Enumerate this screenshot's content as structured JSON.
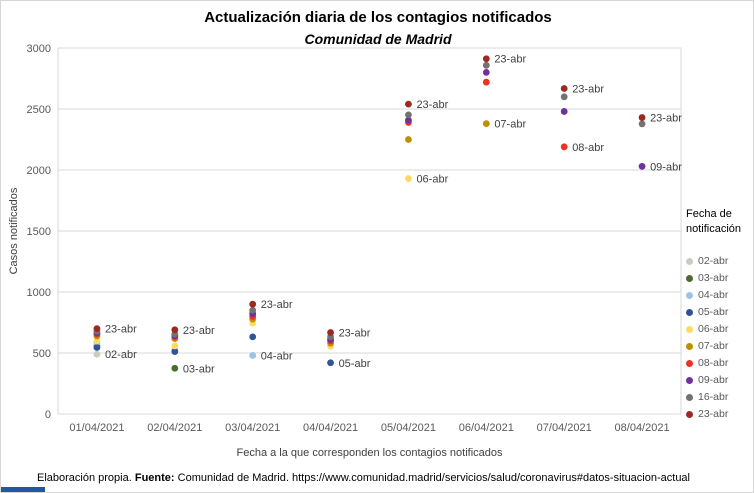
{
  "chart_data": {
    "type": "scatter",
    "title": "Actualización diaria de los contagios notificados",
    "subtitle": "Comunidad de Madrid",
    "xlabel": "Fecha a la que corresponden los contagios notificados",
    "ylabel": "Casos notificados",
    "ylim": [
      0,
      3000
    ],
    "ytick_step": 500,
    "grid": "horizontal",
    "legend_position": "right",
    "legend_title": "Fecha de notificación",
    "legend_title_line1": "Fecha de",
    "legend_title_line2": "notificación",
    "categories": [
      "01/04/2021",
      "02/04/2021",
      "03/04/2021",
      "04/04/2021",
      "05/04/2021",
      "06/04/2021",
      "07/04/2021",
      "08/04/2021"
    ],
    "series": [
      {
        "name": "02-abr",
        "color": "#c5cfc0",
        "values": [
          490,
          null,
          null,
          null,
          null,
          null,
          null,
          null
        ]
      },
      {
        "name": "03-abr",
        "color": "#4e6b2f",
        "values": [
          558,
          375,
          null,
          null,
          null,
          null,
          null,
          null
        ]
      },
      {
        "name": "04-abr",
        "color": "#9dc3e6",
        "values": [
          583,
          525,
          480,
          null,
          null,
          null,
          null,
          null
        ]
      },
      {
        "name": "05-abr",
        "color": "#2f5597",
        "values": [
          545,
          512,
          632,
          420,
          null,
          null,
          null,
          null
        ]
      },
      {
        "name": "06-abr",
        "color": "#ffd966",
        "values": [
          598,
          558,
          745,
          556,
          1930,
          null,
          null,
          null
        ]
      },
      {
        "name": "07-abr",
        "color": "#bf8f00",
        "values": [
          640,
          618,
          778,
          580,
          2250,
          2380,
          null,
          null
        ]
      },
      {
        "name": "08-abr",
        "color": "#ea3323",
        "values": [
          657,
          632,
          800,
          600,
          2390,
          2720,
          2190,
          null
        ]
      },
      {
        "name": "09-abr",
        "color": "#7030a0",
        "values": [
          664,
          643,
          822,
          612,
          2408,
          2800,
          2480,
          2030
        ]
      },
      {
        "name": "16-abr",
        "color": "#767171",
        "values": [
          678,
          655,
          850,
          633,
          2452,
          2858,
          2600,
          2378
        ]
      },
      {
        "name": "23-abr",
        "color": "#9c2a21",
        "values": [
          700,
          690,
          900,
          668,
          2540,
          2912,
          2668,
          2430
        ]
      }
    ],
    "annotations": [
      {
        "category": 0,
        "series": "23-abr",
        "label": "23-abr"
      },
      {
        "category": 0,
        "series": "02-abr",
        "label": "02-abr"
      },
      {
        "category": 1,
        "series": "23-abr",
        "label": "23-abr"
      },
      {
        "category": 1,
        "series": "03-abr",
        "label": "03-abr"
      },
      {
        "category": 2,
        "series": "23-abr",
        "label": "23-abr"
      },
      {
        "category": 2,
        "series": "04-abr",
        "label": "04-abr"
      },
      {
        "category": 3,
        "series": "23-abr",
        "label": "23-abr"
      },
      {
        "category": 3,
        "series": "05-abr",
        "label": "05-abr"
      },
      {
        "category": 4,
        "series": "23-abr",
        "label": "23-abr"
      },
      {
        "category": 4,
        "series": "06-abr",
        "label": "06-abr"
      },
      {
        "category": 5,
        "series": "23-abr",
        "label": "23-abr"
      },
      {
        "category": 5,
        "series": "07-abr",
        "label": "07-abr"
      },
      {
        "category": 6,
        "series": "23-abr",
        "label": "23-abr"
      },
      {
        "category": 6,
        "series": "08-abr",
        "label": "08-abr"
      },
      {
        "category": 7,
        "series": "23-abr",
        "label": "23-abr"
      },
      {
        "category": 7,
        "series": "09-abr",
        "label": "09-abr"
      }
    ]
  },
  "footer": {
    "prefix": "Elaboración propia. ",
    "source_label": "Fuente:",
    "source_rest": " Comunidad de Madrid. https://www.comunidad.madrid/servicios/salud/coronavirus#datos-situacion-actual"
  }
}
